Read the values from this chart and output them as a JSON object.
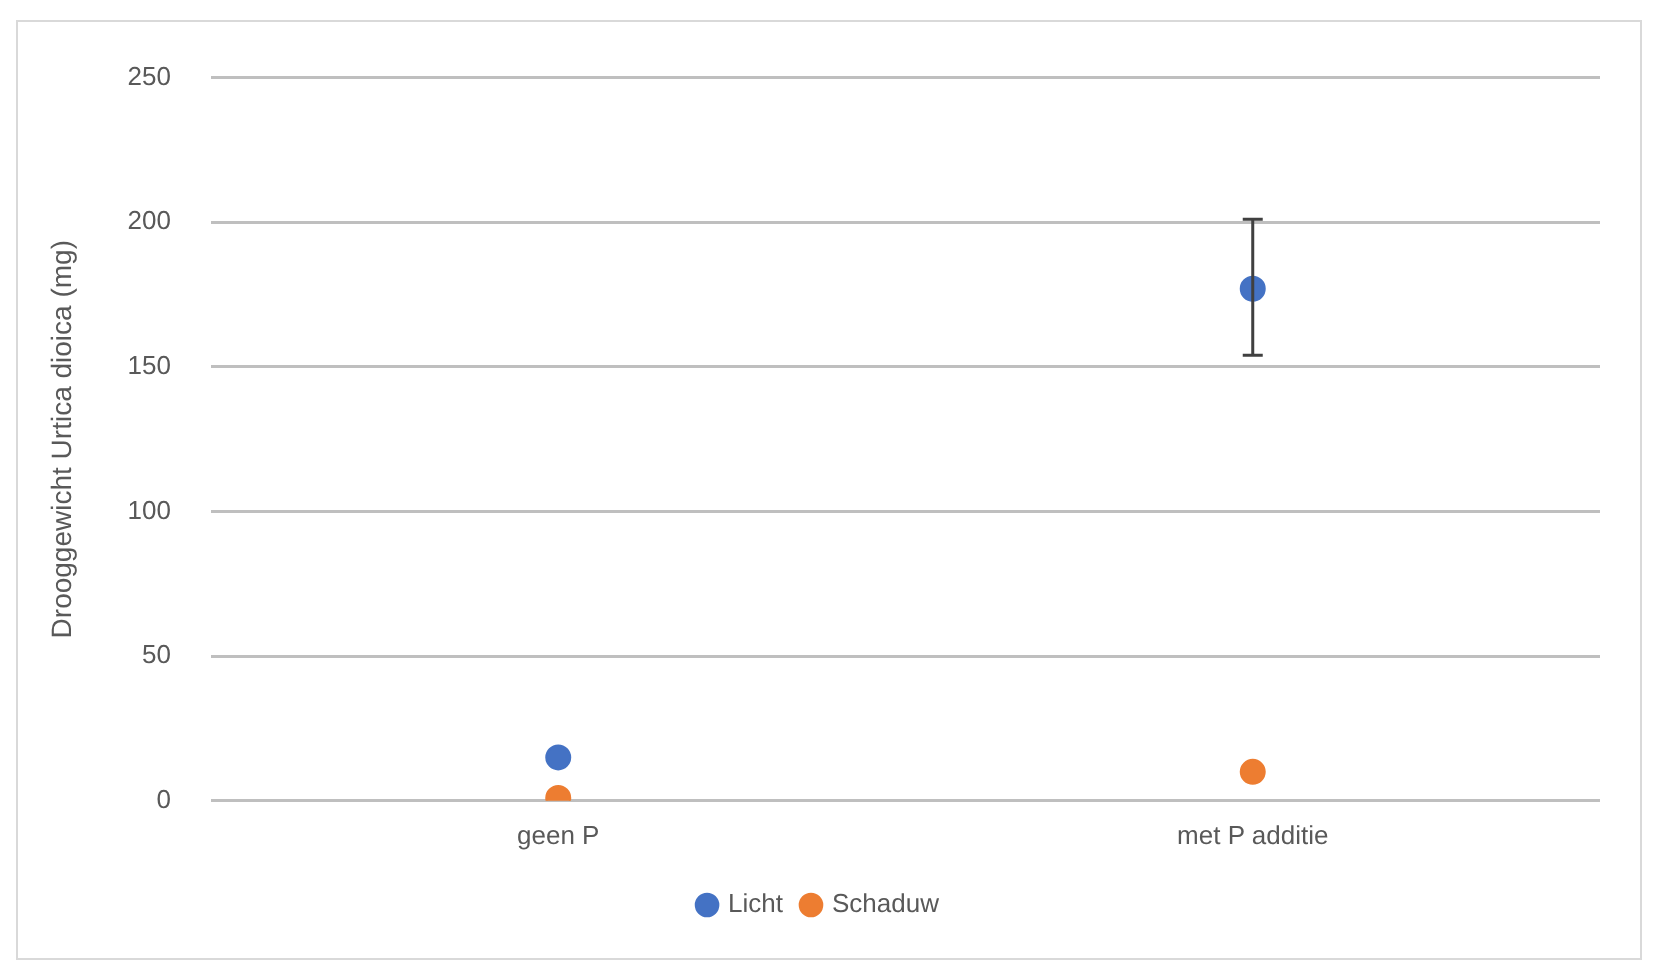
{
  "chart_data": {
    "type": "scatter",
    "ylabel": "Drooggewicht Urtica dioica (mg)",
    "categories": [
      "geen P",
      "met P additie"
    ],
    "series": [
      {
        "name": "Licht",
        "color": "#4472c4",
        "values": [
          15,
          177
        ],
        "errors": [
          null,
          [
            154,
            201
          ]
        ]
      },
      {
        "name": "Schaduw",
        "color": "#ed7d31",
        "values": [
          1,
          10
        ]
      }
    ],
    "ylim": [
      0,
      250
    ],
    "yticks": [
      0,
      50,
      100,
      150,
      200,
      250
    ],
    "grid": "y",
    "legend": "bottom",
    "marker": "circle"
  }
}
